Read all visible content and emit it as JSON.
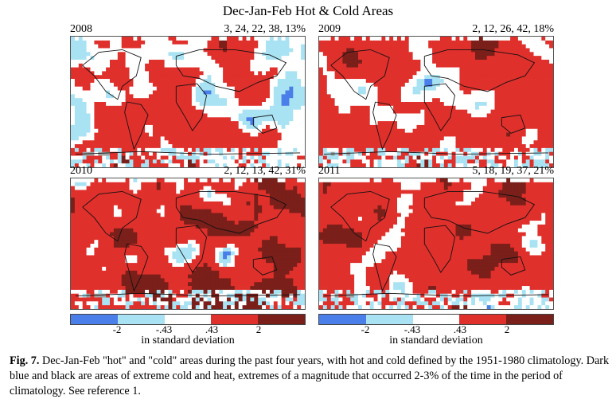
{
  "figure": {
    "title": "Dec-Jan-Feb Hot & Cold Areas",
    "panels": [
      {
        "year": "2008",
        "stats": "3, 24, 22, 38, 13%"
      },
      {
        "year": "2009",
        "stats": "2, 12, 26, 42, 18%"
      },
      {
        "year": "2010",
        "stats": "2, 12, 13, 42, 31%"
      },
      {
        "year": "2011",
        "stats": "5, 18, 19, 37, 21%"
      }
    ],
    "legend": {
      "ticks": [
        "-2",
        "-.43",
        ".43",
        "2"
      ],
      "unit": "in standard deviation",
      "colors": [
        "#4a7ee8",
        "#a9e3f3",
        "#ffffff",
        "#e0302c",
        "#7a1f1a"
      ]
    },
    "caption": {
      "label": "Fig. 7.",
      "text": " Dec-Jan-Feb \"hot\" and \"cold\" areas during the past four years, with hot and cold defined by the 1951-1980 climatology.  Dark blue and black are areas of extreme cold and heat, extremes of a magnitude that occurred 2-3% of the time in the period of climatology.  See reference 1."
    }
  }
}
